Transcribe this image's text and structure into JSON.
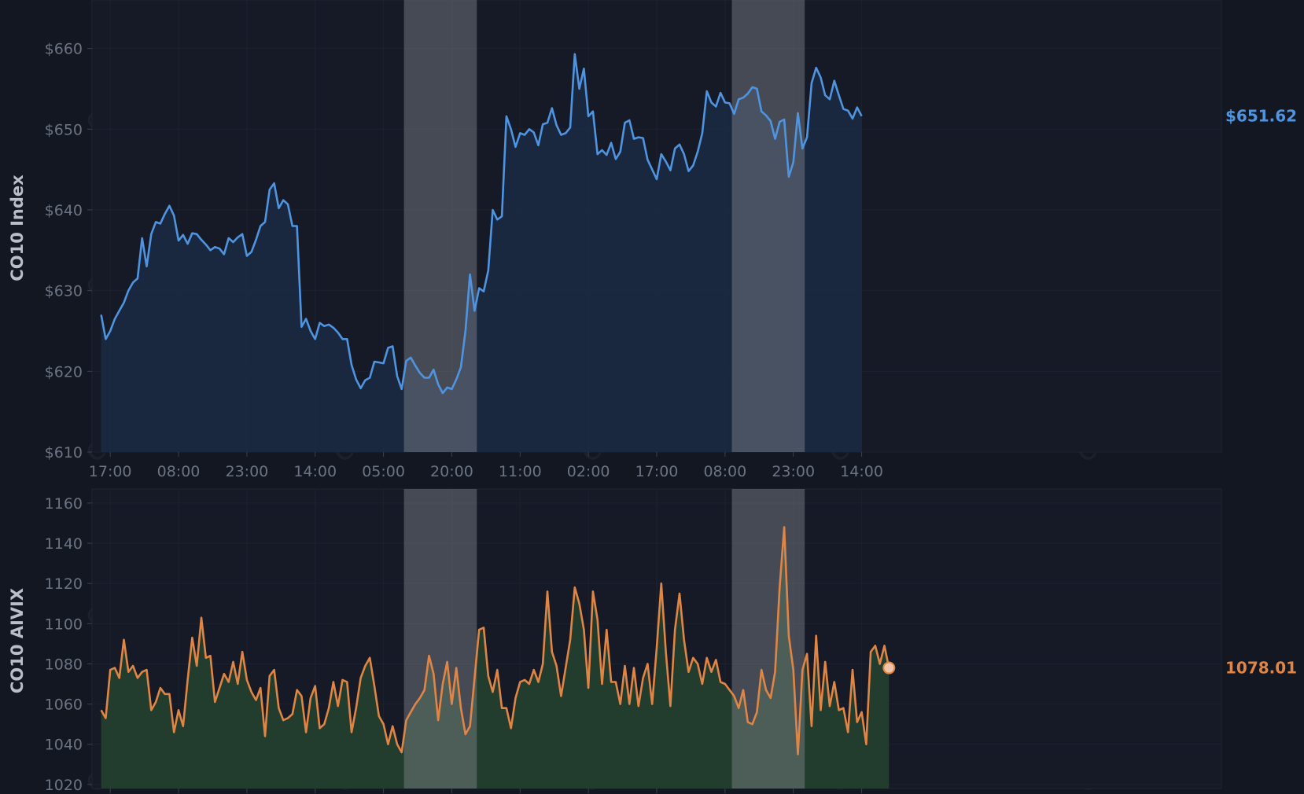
{
  "colors": {
    "background": "#131722",
    "panel": "#151a26",
    "grid": "#1d2230",
    "index_line": "#4f94e0",
    "index_fill": "#1b2a42",
    "aivix_line": "#e08544",
    "aivix_fill": "#23402f",
    "highlight_band": "#8a8d94",
    "tick_text": "#6c7482"
  },
  "watermark": "cryptoracle",
  "chart_data": [
    {
      "type": "area",
      "ylabel": "CO10 Index",
      "ylim": [
        610,
        666
      ],
      "yticks": [
        610,
        620,
        630,
        640,
        650,
        660
      ],
      "ytick_labels": [
        "$610",
        "$620",
        "$630",
        "$640",
        "$650",
        "$660"
      ],
      "xlim": [
        -4,
        244
      ],
      "xticks": [
        0,
        15,
        30,
        45,
        60,
        75,
        90,
        105,
        120,
        135,
        150,
        165
      ],
      "xtick_labels": [
        "17:00",
        "08:00",
        "23:00",
        "14:00",
        "05:00",
        "20:00",
        "11:00",
        "02:00",
        "17:00",
        "08:00",
        "23:00",
        "14:00"
      ],
      "highlight_ranges": [
        [
          64.5,
          80.5
        ],
        [
          136.5,
          152.5
        ]
      ],
      "grid": true,
      "last_value_label": "$651.62",
      "series": [
        {
          "x_start": -2,
          "x_step": 1,
          "values": [
            627,
            624,
            625,
            626.5,
            627.5,
            628.5,
            630,
            631,
            631.5,
            636.5,
            633,
            637,
            638.5,
            638.3,
            639.5,
            640.5,
            639.3,
            636.2,
            636.9,
            635.8,
            637.1,
            637,
            636.3,
            635.7,
            635,
            635.4,
            635.2,
            634.5,
            636.5,
            636,
            636.6,
            637,
            634.3,
            634.8,
            636.3,
            638,
            638.5,
            642.5,
            643.3,
            640.2,
            641.2,
            640.7,
            638,
            638,
            625.5,
            626.5,
            625,
            624,
            626,
            625.6,
            625.8,
            625.4,
            624.8,
            624,
            624,
            620.8,
            619,
            617.9,
            618.9,
            619.2,
            621.2,
            621.1,
            621,
            622.9,
            623.1,
            619.4,
            617.8,
            621.3,
            621.7,
            620.7,
            619.8,
            619.2,
            619.2,
            620.2,
            618.4,
            617.3,
            618,
            617.8,
            619,
            620.5,
            625,
            632,
            627.5,
            630.3,
            629.9,
            632.5,
            640,
            638.8,
            639.2,
            651.6,
            650,
            647.8,
            649.5,
            649.3,
            650,
            649.6,
            648,
            650.6,
            650.8,
            652.6,
            650.5,
            649.3,
            649.5,
            650.2,
            659.3,
            655,
            657.5,
            651.6,
            652.2,
            646.9,
            647.4,
            646.8,
            648.3,
            646.3,
            647.2,
            650.8,
            651.1,
            648.8,
            649,
            648.9,
            646.2,
            645,
            643.8,
            646.9,
            646,
            644.9,
            647.6,
            648.1,
            646.9,
            644.8,
            645.5,
            647.2,
            649.5,
            654.7,
            653.3,
            652.8,
            654.5,
            653.3,
            653.2,
            651.9,
            653.7,
            653.9,
            654.4,
            655.2,
            655,
            652.2,
            651.7,
            651,
            648.8,
            650.9,
            651.2,
            644.1,
            645.9,
            652,
            647.6,
            649,
            655.7,
            657.6,
            656.4,
            654.2,
            653.7,
            656,
            654.2,
            652.5,
            652.3,
            651.3,
            652.7,
            651.62
          ]
        }
      ]
    },
    {
      "type": "area",
      "ylabel": "CO10 AIVIX",
      "ylim": [
        1018,
        1167
      ],
      "yticks": [
        1020,
        1040,
        1060,
        1080,
        1100,
        1120,
        1140,
        1160
      ],
      "ytick_labels": [
        "1020",
        "1040",
        "1060",
        "1080",
        "1100",
        "1120",
        "1140",
        "1160"
      ],
      "xlim": [
        -4,
        244
      ],
      "highlight_ranges": [
        [
          64.5,
          80.5
        ],
        [
          136.5,
          152.5
        ]
      ],
      "grid": true,
      "last_value_label": "1078.01",
      "series": [
        {
          "x_start": -2,
          "x_step": 1,
          "values": [
            1057,
            1053,
            1077,
            1078,
            1073,
            1092,
            1076,
            1079,
            1073,
            1076,
            1077,
            1057,
            1061,
            1068,
            1065,
            1065,
            1046,
            1057,
            1049,
            1072,
            1093,
            1079,
            1103,
            1083,
            1084,
            1061,
            1068,
            1075,
            1071,
            1081,
            1070,
            1086,
            1072,
            1066,
            1062,
            1068,
            1044,
            1074,
            1077,
            1058,
            1052,
            1053,
            1055,
            1067,
            1064,
            1046,
            1063,
            1069,
            1048,
            1050,
            1058,
            1071,
            1059,
            1072,
            1071,
            1046,
            1058,
            1073,
            1079,
            1083,
            1069,
            1054,
            1050,
            1040,
            1049,
            1040,
            1036,
            1052,
            1056,
            1060,
            1063,
            1067,
            1084,
            1075,
            1052,
            1070,
            1081,
            1060,
            1078,
            1058,
            1045,
            1049,
            1073,
            1097,
            1098,
            1074,
            1066,
            1077,
            1058,
            1058,
            1048,
            1063,
            1071,
            1072,
            1070,
            1077,
            1071,
            1080,
            1116,
            1086,
            1079,
            1064,
            1078,
            1092,
            1118,
            1110,
            1097,
            1068,
            1116,
            1102,
            1070,
            1097,
            1071,
            1071,
            1060,
            1079,
            1060,
            1078,
            1059,
            1073,
            1080,
            1060,
            1088,
            1120,
            1086,
            1059,
            1097,
            1115,
            1092,
            1076,
            1083,
            1080,
            1070,
            1083,
            1076,
            1082,
            1071,
            1070,
            1067,
            1064,
            1058,
            1067,
            1051,
            1050,
            1056,
            1077,
            1067,
            1063,
            1076,
            1118,
            1148,
            1094,
            1077,
            1035,
            1077,
            1085,
            1049,
            1094,
            1057,
            1081,
            1059,
            1071,
            1057,
            1058,
            1046,
            1077,
            1051,
            1056,
            1040,
            1086,
            1089,
            1080,
            1089,
            1078.01
          ]
        }
      ]
    }
  ]
}
